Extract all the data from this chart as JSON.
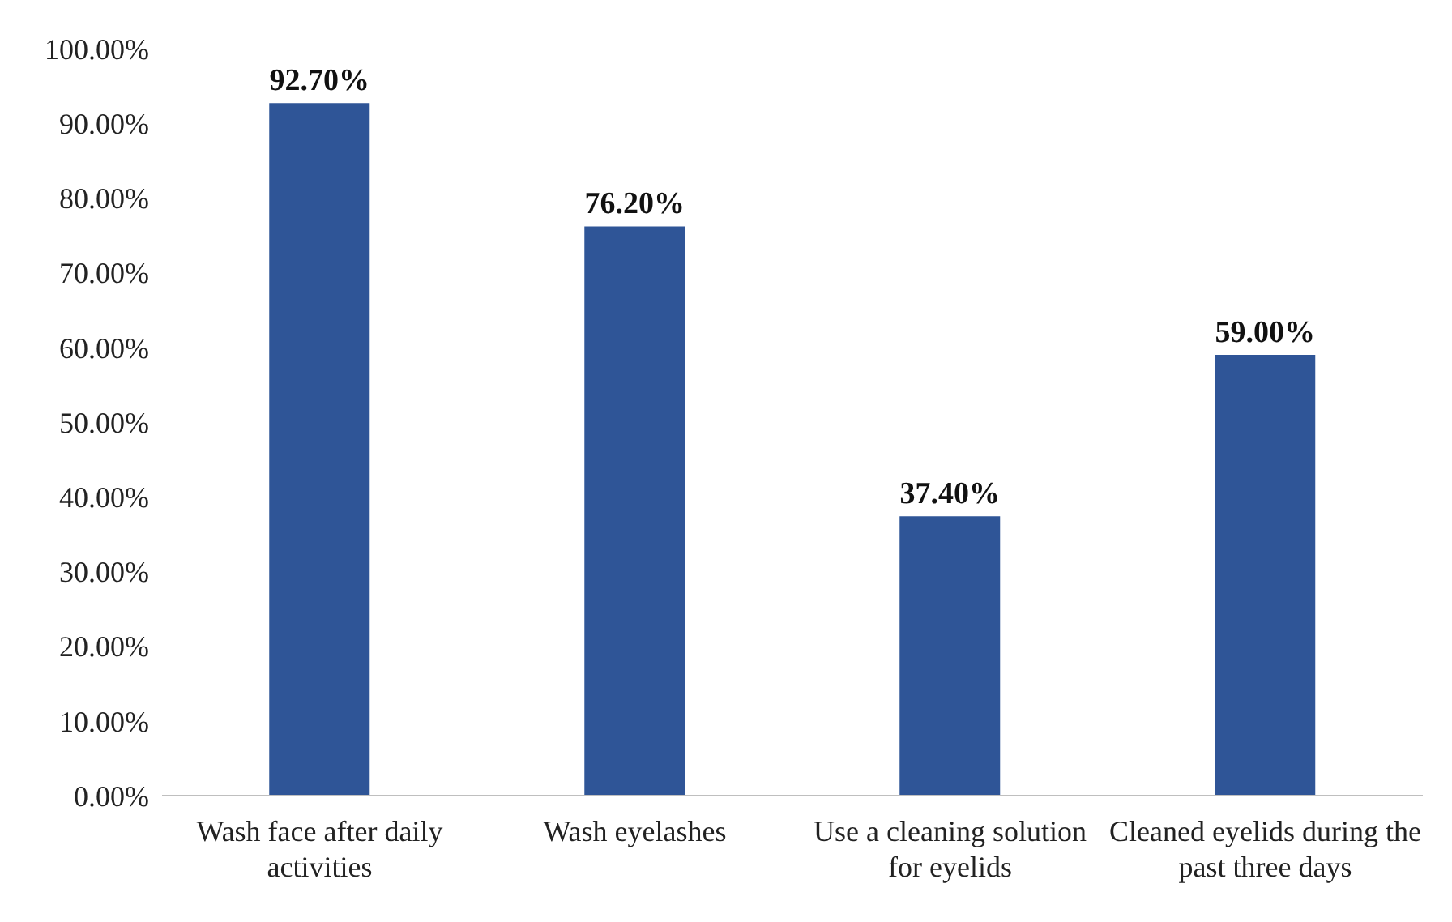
{
  "chart_data": {
    "type": "bar",
    "categories": [
      "Wash face after daily activities",
      "Wash eyelashes",
      "Use a cleaning solution for eyelids",
      "Cleaned eyelids during the past three days"
    ],
    "values": [
      92.7,
      76.2,
      37.4,
      59.0
    ],
    "value_labels": [
      "92.70%",
      "76.20%",
      "37.40%",
      "59.00%"
    ],
    "color": "#2f5597",
    "ylim": [
      0,
      100
    ],
    "yticks": [
      {
        "value": 0,
        "label": "0.00%"
      },
      {
        "value": 10,
        "label": "10.00%"
      },
      {
        "value": 20,
        "label": "20.00%"
      },
      {
        "value": 30,
        "label": "30.00%"
      },
      {
        "value": 40,
        "label": "40.00%"
      },
      {
        "value": 50,
        "label": "50.00%"
      },
      {
        "value": 60,
        "label": "60.00%"
      },
      {
        "value": 70,
        "label": "70.00%"
      },
      {
        "value": 80,
        "label": "80.00%"
      },
      {
        "value": 90,
        "label": "90.00%"
      },
      {
        "value": 100,
        "label": "100.00%"
      }
    ],
    "grid": false,
    "legend": false
  }
}
